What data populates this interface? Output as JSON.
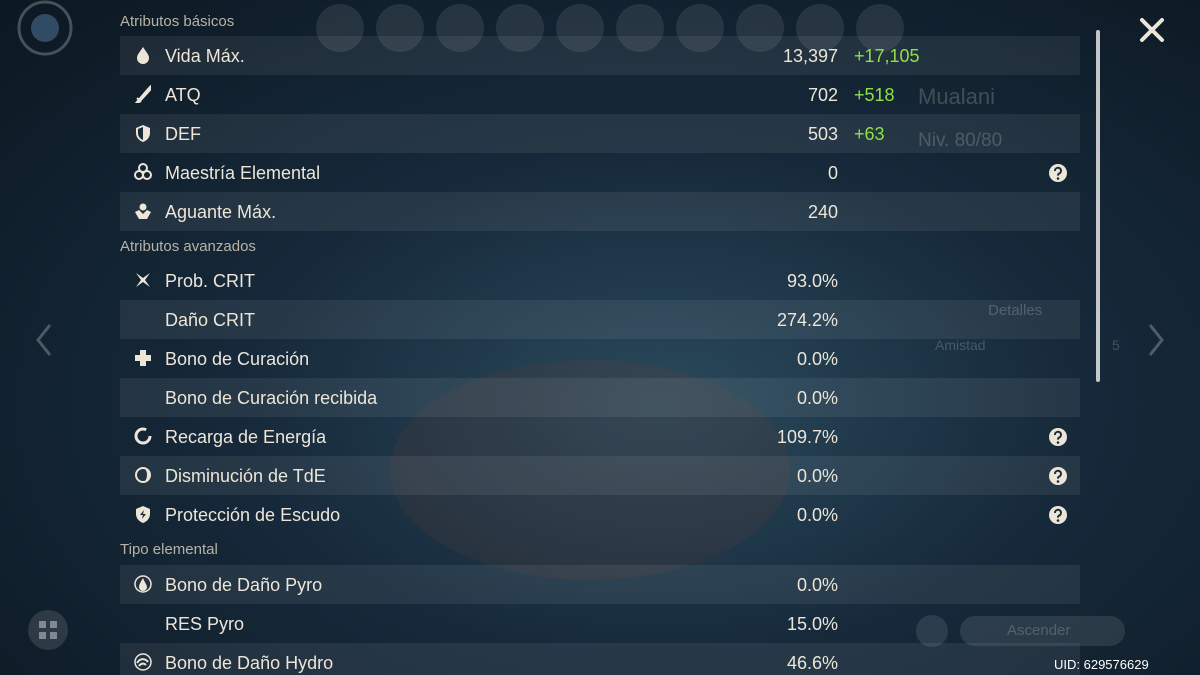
{
  "header": {
    "character": "Mualani",
    "level": "Niv. 80/80",
    "details": "Detalles",
    "friendship": "Amistad",
    "friendship_level": "5",
    "ascend": "Ascender",
    "uid": "UID: 629576629"
  },
  "sections": [
    {
      "title": "Atributos básicos",
      "rows": [
        {
          "name": "Vida Máx.",
          "value": "13,397",
          "bonus": "+17,105"
        },
        {
          "name": "ATQ",
          "value": "702",
          "bonus": "+518"
        },
        {
          "name": "DEF",
          "value": "503",
          "bonus": "+63"
        },
        {
          "name": "Maestría Elemental",
          "value": "0",
          "help": true
        },
        {
          "name": "Aguante Máx.",
          "value": "240"
        }
      ]
    },
    {
      "title": "Atributos avanzados",
      "rows": [
        {
          "name": "Prob. CRIT",
          "value": "93.0%"
        },
        {
          "name": "Daño CRIT",
          "value": "274.2%"
        },
        {
          "name": "Bono de Curación",
          "value": "0.0%"
        },
        {
          "name": "Bono de Curación recibida",
          "value": "0.0%"
        },
        {
          "name": "Recarga de Energía",
          "value": "109.7%",
          "help": true
        },
        {
          "name": "Disminución de TdE",
          "value": "0.0%",
          "help": true
        },
        {
          "name": "Protección de Escudo",
          "value": "0.0%",
          "help": true
        }
      ]
    },
    {
      "title": "Tipo elemental",
      "rows": [
        {
          "name": "Bono de Daño Pyro",
          "value": "0.0%"
        },
        {
          "name": "RES Pyro",
          "value": "15.0%"
        },
        {
          "name": "Bono de Daño Hydro",
          "value": "46.6%"
        }
      ]
    }
  ]
}
